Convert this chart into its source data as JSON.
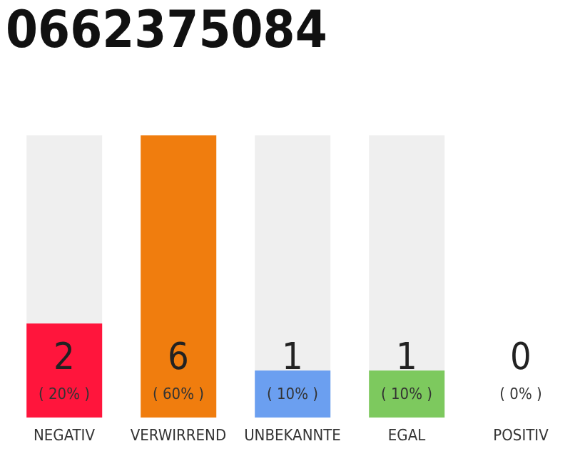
{
  "chart_data": {
    "type": "bar",
    "title": "0662375084",
    "categories": [
      "NEGATIV",
      "VERWIRREND",
      "UNBEKANNTE",
      "EGAL",
      "POSITIV"
    ],
    "values": [
      2,
      6,
      1,
      1,
      0
    ],
    "colors": [
      "#ff153c",
      "#f07d0e",
      "#6b9ff0",
      "#7dc95e",
      "#22aa44"
    ],
    "data_labels": true,
    "annotations": [
      "( 20% )",
      "( 60% )",
      "( 10% )",
      "( 10% )",
      "( 0% )"
    ]
  }
}
